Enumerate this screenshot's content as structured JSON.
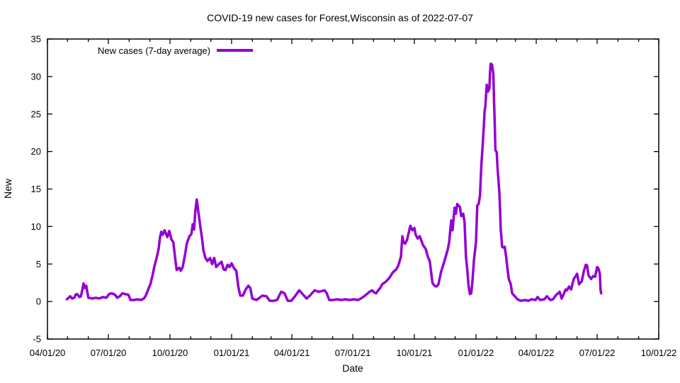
{
  "chart_data": {
    "type": "line",
    "title": "COVID-19 new cases for Forest,Wisconsin as of 2022-07-07",
    "xlabel": "Date",
    "ylabel": "New",
    "ylim": [
      -5,
      35
    ],
    "y_ticks": [
      -5,
      0,
      5,
      10,
      15,
      20,
      25,
      30,
      35
    ],
    "x_range": [
      "2020-04-01",
      "2022-10-01"
    ],
    "x_ticks": [
      {
        "date": "2020-04-01",
        "label": "04/01/20"
      },
      {
        "date": "2020-07-01",
        "label": "07/01/20"
      },
      {
        "date": "2020-10-01",
        "label": "10/01/20"
      },
      {
        "date": "2021-01-01",
        "label": "01/01/21"
      },
      {
        "date": "2021-04-01",
        "label": "04/01/21"
      },
      {
        "date": "2021-07-01",
        "label": "07/01/21"
      },
      {
        "date": "2021-10-01",
        "label": "10/01/21"
      },
      {
        "date": "2022-01-01",
        "label": "01/01/22"
      },
      {
        "date": "2022-04-01",
        "label": "04/01/22"
      },
      {
        "date": "2022-07-01",
        "label": "07/01/22"
      },
      {
        "date": "2022-10-01",
        "label": "10/01/22"
      }
    ],
    "minor_tick_unit": "month",
    "grid": false,
    "legend_position": "top-left",
    "background": "#ffffff",
    "series": [
      {
        "name": "New cases (7-day average)",
        "color": "#9400d3",
        "points": [
          [
            "2020-04-30",
            0.3
          ],
          [
            "2020-05-05",
            0.7
          ],
          [
            "2020-05-08",
            0.4
          ],
          [
            "2020-05-11",
            0.5
          ],
          [
            "2020-05-13",
            0.9
          ],
          [
            "2020-05-15",
            1.0
          ],
          [
            "2020-05-19",
            0.6
          ],
          [
            "2020-05-21",
            0.7
          ],
          [
            "2020-05-25",
            2.4
          ],
          [
            "2020-05-27",
            1.8
          ],
          [
            "2020-05-29",
            2.1
          ],
          [
            "2020-06-01",
            0.5
          ],
          [
            "2020-06-07",
            0.4
          ],
          [
            "2020-06-12",
            0.5
          ],
          [
            "2020-06-17",
            0.4
          ],
          [
            "2020-06-23",
            0.6
          ],
          [
            "2020-06-28",
            0.5
          ],
          [
            "2020-07-02",
            1.0
          ],
          [
            "2020-07-06",
            1.1
          ],
          [
            "2020-07-11",
            0.9
          ],
          [
            "2020-07-14",
            0.5
          ],
          [
            "2020-07-18",
            0.7
          ],
          [
            "2020-07-22",
            1.1
          ],
          [
            "2020-07-26",
            1.0
          ],
          [
            "2020-07-31",
            0.9
          ],
          [
            "2020-08-03",
            0.2
          ],
          [
            "2020-08-08",
            0.2
          ],
          [
            "2020-08-13",
            0.3
          ],
          [
            "2020-08-19",
            0.2
          ],
          [
            "2020-08-23",
            0.4
          ],
          [
            "2020-08-26",
            0.8
          ],
          [
            "2020-08-29",
            1.5
          ],
          [
            "2020-09-02",
            2.4
          ],
          [
            "2020-09-05",
            3.5
          ],
          [
            "2020-09-08",
            4.8
          ],
          [
            "2020-09-11",
            5.8
          ],
          [
            "2020-09-14",
            7.0
          ],
          [
            "2020-09-16",
            8.5
          ],
          [
            "2020-09-18",
            9.3
          ],
          [
            "2020-09-20",
            8.9
          ],
          [
            "2020-09-23",
            9.5
          ],
          [
            "2020-09-27",
            8.6
          ],
          [
            "2020-09-30",
            9.4
          ],
          [
            "2020-10-03",
            8.3
          ],
          [
            "2020-10-06",
            7.9
          ],
          [
            "2020-10-09",
            5.6
          ],
          [
            "2020-10-11",
            4.2
          ],
          [
            "2020-10-15",
            4.5
          ],
          [
            "2020-10-17",
            4.1
          ],
          [
            "2020-10-20",
            4.6
          ],
          [
            "2020-10-24",
            6.5
          ],
          [
            "2020-10-26",
            7.7
          ],
          [
            "2020-10-30",
            8.7
          ],
          [
            "2020-11-02",
            9.0
          ],
          [
            "2020-11-04",
            10.3
          ],
          [
            "2020-11-06",
            9.6
          ],
          [
            "2020-11-08",
            12.2
          ],
          [
            "2020-11-10",
            13.6
          ],
          [
            "2020-11-12",
            12.2
          ],
          [
            "2020-11-14",
            10.9
          ],
          [
            "2020-11-16",
            9.5
          ],
          [
            "2020-11-18",
            8.4
          ],
          [
            "2020-11-20",
            6.8
          ],
          [
            "2020-11-23",
            5.8
          ],
          [
            "2020-11-26",
            5.4
          ],
          [
            "2020-11-30",
            5.8
          ],
          [
            "2020-12-03",
            5.0
          ],
          [
            "2020-12-06",
            5.8
          ],
          [
            "2020-12-09",
            4.6
          ],
          [
            "2020-12-13",
            5.0
          ],
          [
            "2020-12-17",
            5.3
          ],
          [
            "2020-12-20",
            4.3
          ],
          [
            "2020-12-23",
            4.2
          ],
          [
            "2020-12-26",
            4.9
          ],
          [
            "2020-12-29",
            4.6
          ],
          [
            "2021-01-01",
            5.1
          ],
          [
            "2021-01-05",
            4.4
          ],
          [
            "2021-01-08",
            4.1
          ],
          [
            "2021-01-11",
            2.0
          ],
          [
            "2021-01-14",
            0.8
          ],
          [
            "2021-01-18",
            0.8
          ],
          [
            "2021-01-22",
            1.6
          ],
          [
            "2021-01-26",
            2.1
          ],
          [
            "2021-01-29",
            1.8
          ],
          [
            "2021-02-01",
            0.4
          ],
          [
            "2021-02-07",
            0.2
          ],
          [
            "2021-02-12",
            0.5
          ],
          [
            "2021-02-16",
            0.8
          ],
          [
            "2021-02-22",
            0.7
          ],
          [
            "2021-02-27",
            0.1
          ],
          [
            "2021-03-05",
            0.1
          ],
          [
            "2021-03-10",
            0.2
          ],
          [
            "2021-03-16",
            1.3
          ],
          [
            "2021-03-21",
            1.1
          ],
          [
            "2021-03-26",
            0.1
          ],
          [
            "2021-03-31",
            0.1
          ],
          [
            "2021-04-04",
            0.5
          ],
          [
            "2021-04-08",
            1.0
          ],
          [
            "2021-04-12",
            1.5
          ],
          [
            "2021-04-16",
            1.1
          ],
          [
            "2021-04-23",
            0.4
          ],
          [
            "2021-04-27",
            0.7
          ],
          [
            "2021-05-01",
            1.1
          ],
          [
            "2021-05-05",
            1.5
          ],
          [
            "2021-05-11",
            1.3
          ],
          [
            "2021-05-16",
            1.4
          ],
          [
            "2021-05-20",
            1.5
          ],
          [
            "2021-05-23",
            1.1
          ],
          [
            "2021-05-27",
            0.2
          ],
          [
            "2021-06-01",
            0.2
          ],
          [
            "2021-06-07",
            0.3
          ],
          [
            "2021-06-14",
            0.2
          ],
          [
            "2021-06-20",
            0.3
          ],
          [
            "2021-06-26",
            0.2
          ],
          [
            "2021-07-03",
            0.3
          ],
          [
            "2021-07-09",
            0.2
          ],
          [
            "2021-07-13",
            0.4
          ],
          [
            "2021-07-18",
            0.7
          ],
          [
            "2021-07-22",
            1.0
          ],
          [
            "2021-07-26",
            1.3
          ],
          [
            "2021-07-30",
            1.5
          ],
          [
            "2021-08-02",
            1.2
          ],
          [
            "2021-08-05",
            1.1
          ],
          [
            "2021-08-08",
            1.5
          ],
          [
            "2021-08-11",
            1.8
          ],
          [
            "2021-08-14",
            2.3
          ],
          [
            "2021-08-20",
            2.7
          ],
          [
            "2021-08-25",
            3.2
          ],
          [
            "2021-08-30",
            3.9
          ],
          [
            "2021-09-04",
            4.3
          ],
          [
            "2021-09-07",
            4.8
          ],
          [
            "2021-09-11",
            6.0
          ],
          [
            "2021-09-13",
            8.7
          ],
          [
            "2021-09-15",
            7.9
          ],
          [
            "2021-09-17",
            7.7
          ],
          [
            "2021-09-20",
            8.2
          ],
          [
            "2021-09-25",
            10.1
          ],
          [
            "2021-09-28",
            9.5
          ],
          [
            "2021-10-01",
            9.8
          ],
          [
            "2021-10-03",
            8.9
          ],
          [
            "2021-10-06",
            8.4
          ],
          [
            "2021-10-09",
            8.7
          ],
          [
            "2021-10-14",
            7.5
          ],
          [
            "2021-10-18",
            7.0
          ],
          [
            "2021-10-21",
            6.0
          ],
          [
            "2021-10-24",
            5.4
          ],
          [
            "2021-10-28",
            2.5
          ],
          [
            "2021-10-31",
            2.1
          ],
          [
            "2021-11-03",
            2.0
          ],
          [
            "2021-11-06",
            2.3
          ],
          [
            "2021-11-10",
            4.0
          ],
          [
            "2021-11-15",
            5.4
          ],
          [
            "2021-11-20",
            7.0
          ],
          [
            "2021-11-22",
            7.9
          ],
          [
            "2021-11-24",
            9.8
          ],
          [
            "2021-11-25",
            10.8
          ],
          [
            "2021-11-27",
            9.5
          ],
          [
            "2021-11-30",
            12.5
          ],
          [
            "2021-12-02",
            11.7
          ],
          [
            "2021-12-04",
            13.0
          ],
          [
            "2021-12-06",
            12.8
          ],
          [
            "2021-12-08",
            12.6
          ],
          [
            "2021-12-10",
            11.4
          ],
          [
            "2021-12-13",
            11.7
          ],
          [
            "2021-12-15",
            10.5
          ],
          [
            "2021-12-17",
            6.0
          ],
          [
            "2021-12-19",
            4.2
          ],
          [
            "2021-12-21",
            2.0
          ],
          [
            "2021-12-23",
            1.0
          ],
          [
            "2021-12-25",
            1.1
          ],
          [
            "2021-12-27",
            3.0
          ],
          [
            "2021-12-29",
            5.5
          ],
          [
            "2022-01-01",
            8.0
          ],
          [
            "2022-01-03",
            12.8
          ],
          [
            "2022-01-05",
            13.0
          ],
          [
            "2022-01-07",
            14.1
          ],
          [
            "2022-01-09",
            18.1
          ],
          [
            "2022-01-11",
            20.8
          ],
          [
            "2022-01-13",
            23.8
          ],
          [
            "2022-01-14",
            25.5
          ],
          [
            "2022-01-15",
            26.0
          ],
          [
            "2022-01-17",
            28.9
          ],
          [
            "2022-01-19",
            28.0
          ],
          [
            "2022-01-21",
            28.4
          ],
          [
            "2022-01-22",
            30.5
          ],
          [
            "2022-01-23",
            31.7
          ],
          [
            "2022-01-25",
            31.6
          ],
          [
            "2022-01-27",
            30.3
          ],
          [
            "2022-01-28",
            26.6
          ],
          [
            "2022-01-29",
            24.0
          ],
          [
            "2022-01-30",
            20.2
          ],
          [
            "2022-02-01",
            19.9
          ],
          [
            "2022-02-02",
            18.1
          ],
          [
            "2022-02-05",
            14.5
          ],
          [
            "2022-02-06",
            12.2
          ],
          [
            "2022-02-07",
            9.6
          ],
          [
            "2022-02-08",
            8.6
          ],
          [
            "2022-02-09",
            7.3
          ],
          [
            "2022-02-11",
            7.2
          ],
          [
            "2022-02-13",
            7.3
          ],
          [
            "2022-02-15",
            6.0
          ],
          [
            "2022-02-17",
            4.4
          ],
          [
            "2022-02-19",
            3.0
          ],
          [
            "2022-02-22",
            2.3
          ],
          [
            "2022-02-24",
            1.1
          ],
          [
            "2022-02-28",
            0.7
          ],
          [
            "2022-03-04",
            0.3
          ],
          [
            "2022-03-09",
            0.1
          ],
          [
            "2022-03-15",
            0.2
          ],
          [
            "2022-03-20",
            0.1
          ],
          [
            "2022-03-25",
            0.3
          ],
          [
            "2022-03-31",
            0.2
          ],
          [
            "2022-04-03",
            0.6
          ],
          [
            "2022-04-07",
            0.2
          ],
          [
            "2022-04-13",
            0.3
          ],
          [
            "2022-04-17",
            0.7
          ],
          [
            "2022-04-22",
            0.2
          ],
          [
            "2022-04-26",
            0.3
          ],
          [
            "2022-04-30",
            0.8
          ],
          [
            "2022-05-06",
            1.3
          ],
          [
            "2022-05-09",
            0.4
          ],
          [
            "2022-05-12",
            1.0
          ],
          [
            "2022-05-15",
            1.6
          ],
          [
            "2022-05-17",
            1.5
          ],
          [
            "2022-05-20",
            2.0
          ],
          [
            "2022-05-23",
            1.6
          ],
          [
            "2022-05-27",
            3.0
          ],
          [
            "2022-05-30",
            3.4
          ],
          [
            "2022-06-01",
            3.7
          ],
          [
            "2022-06-04",
            2.3
          ],
          [
            "2022-06-08",
            2.7
          ],
          [
            "2022-06-11",
            4.0
          ],
          [
            "2022-06-14",
            4.9
          ],
          [
            "2022-06-16",
            4.8
          ],
          [
            "2022-06-18",
            3.5
          ],
          [
            "2022-06-22",
            3.0
          ],
          [
            "2022-06-25",
            3.4
          ],
          [
            "2022-06-28",
            3.3
          ],
          [
            "2022-07-01",
            4.6
          ],
          [
            "2022-07-03",
            4.4
          ],
          [
            "2022-07-05",
            3.7
          ],
          [
            "2022-07-06",
            1.6
          ],
          [
            "2022-07-07",
            1.1
          ]
        ]
      }
    ]
  }
}
